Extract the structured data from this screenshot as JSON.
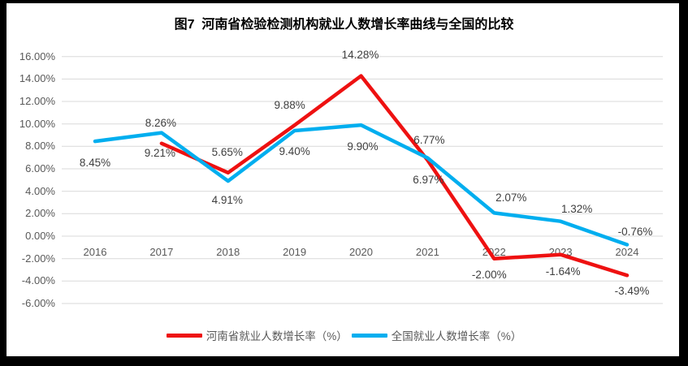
{
  "title": "图7  河南省检验检测机构就业人数增长率曲线与全国的比较",
  "colors": {
    "henan_red": "#EE1111",
    "national_blue": "#00AEEF",
    "gridline": "#D9D9D9",
    "axis_text": "#595959",
    "data_label_text": "#3F3F3F",
    "title_text": "#000000",
    "frame": "#000000",
    "background": "#FFFFFF"
  },
  "chart_data": {
    "type": "line",
    "title": "图7  河南省检验检测机构就业人数增长率曲线与全国的比较",
    "categories": [
      "2016",
      "2017",
      "2018",
      "2019",
      "2020",
      "2021",
      "2022",
      "2023",
      "2024"
    ],
    "series": [
      {
        "name": "河南省就业人数增长率（%）",
        "color_key": "henan_red",
        "values": [
          null,
          8.26,
          5.65,
          9.88,
          14.28,
          6.77,
          -2.0,
          -1.64,
          -3.49
        ],
        "labels": [
          "",
          "8.26%",
          "5.65%",
          "9.88%",
          "14.28%",
          "6.77%",
          "-2.00%",
          "-1.64%",
          "-3.49%"
        ],
        "label_offsets": [
          [
            0,
            0
          ],
          [
            -1,
            -25
          ],
          [
            -1,
            -25
          ],
          [
            -6,
            -25
          ],
          [
            -1,
            -26
          ],
          [
            2,
            -25
          ],
          [
            -6,
            20
          ],
          [
            3,
            21
          ],
          [
            6,
            19
          ]
        ]
      },
      {
        "name": "全国就业人数增长率（%）",
        "color_key": "national_blue",
        "values": [
          8.45,
          9.21,
          4.91,
          9.4,
          9.9,
          6.97,
          2.07,
          1.32,
          -0.76
        ],
        "labels": [
          "8.45%",
          "9.21%",
          "4.91%",
          "9.40%",
          "9.90%",
          "6.97%",
          "2.07%",
          "1.32%",
          "-0.76%"
        ],
        "label_offsets": [
          [
            0,
            26
          ],
          [
            -2,
            25
          ],
          [
            -1,
            23
          ],
          [
            0,
            26
          ],
          [
            2,
            26
          ],
          [
            1,
            27
          ],
          [
            21,
            -19
          ],
          [
            20,
            -15
          ],
          [
            10,
            -16
          ]
        ]
      }
    ],
    "y_ticks": [
      "16.00%",
      "14.00%",
      "12.00%",
      "10.00%",
      "8.00%",
      "6.00%",
      "4.00%",
      "2.00%",
      "0.00%",
      "-2.00%",
      "-4.00%",
      "-6.00%"
    ],
    "y_tick_values": [
      16,
      14,
      12,
      10,
      8,
      6,
      4,
      2,
      0,
      -2,
      -4,
      -6
    ],
    "ylim": [
      -6,
      16
    ],
    "xlabel": "",
    "ylabel": "",
    "grid": true,
    "legend_position": "bottom"
  }
}
